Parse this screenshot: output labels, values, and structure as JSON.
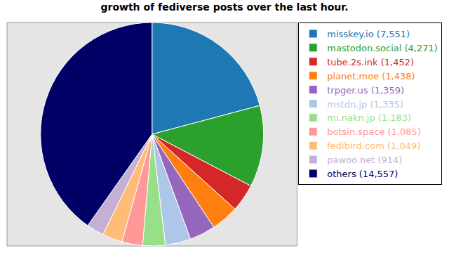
{
  "chart_data": {
    "type": "pie",
    "title": "growth of fediverse posts over the last hour.",
    "categories": [
      "misskey.io (7,551)",
      "mastodon.social (4,271)",
      "tube.2s.ink (1,452)",
      "planet.moe (1,438)",
      "trpger.us (1,359)",
      "mstdn.jp (1,335)",
      "mi.nakn.jp (1,183)",
      "botsin.space (1,085)",
      "fedibird.com (1,049)",
      "pawoo.net (914)",
      "others (14,557)"
    ],
    "values": [
      7551,
      4271,
      1452,
      1438,
      1359,
      1335,
      1183,
      1085,
      1049,
      914,
      14557
    ],
    "colors": [
      "#1f77b4",
      "#2ca02c",
      "#d62728",
      "#ff7f0e",
      "#9467bd",
      "#aec7e8",
      "#98df8a",
      "#ff9896",
      "#ffbb78",
      "#c5b0d5",
      "#000066"
    ],
    "legend": "right"
  }
}
